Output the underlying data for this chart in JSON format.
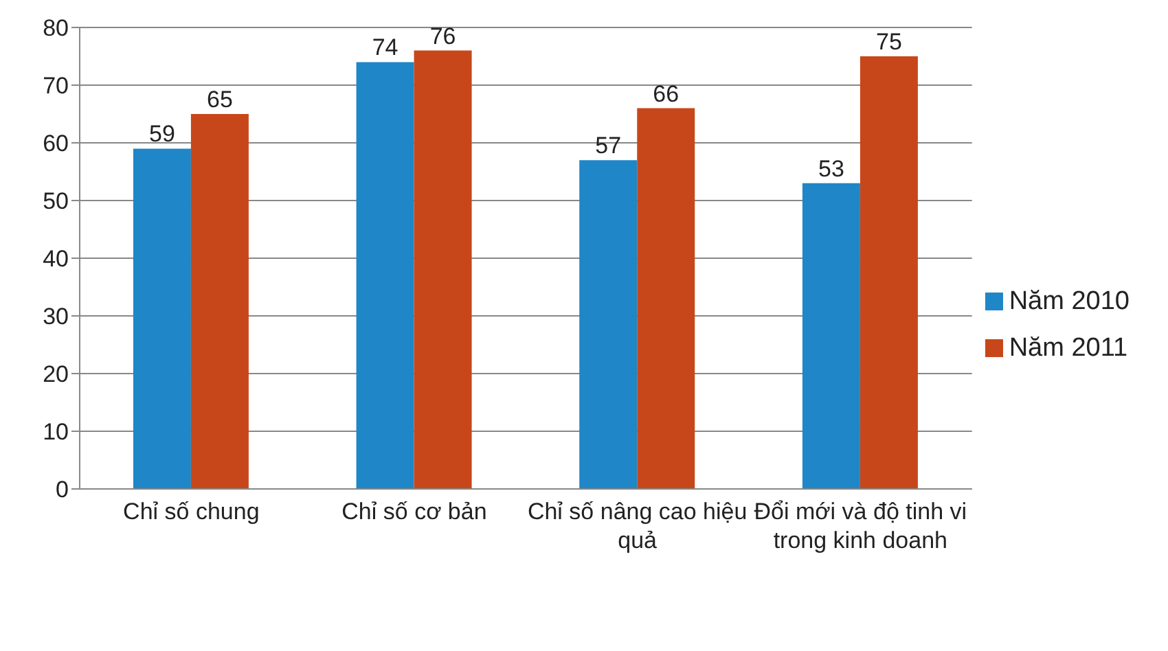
{
  "chart_data": {
    "type": "bar",
    "categories": [
      "Chỉ số chung",
      "Chỉ số cơ bản",
      "Chỉ số nâng cao hiệu quả",
      "Đổi mới và độ tinh vi trong kinh doanh"
    ],
    "series": [
      {
        "name": "Năm 2010",
        "color": "#1f86c8",
        "values": [
          59,
          74,
          57,
          53
        ]
      },
      {
        "name": "Năm 2011",
        "color": "#c8471a",
        "values": [
          65,
          76,
          66,
          75
        ]
      }
    ],
    "ylim": [
      0,
      80
    ],
    "yticks": [
      0,
      10,
      20,
      30,
      40,
      50,
      60,
      70,
      80
    ],
    "grid": "y",
    "legend": "right",
    "data_labels": true
  }
}
